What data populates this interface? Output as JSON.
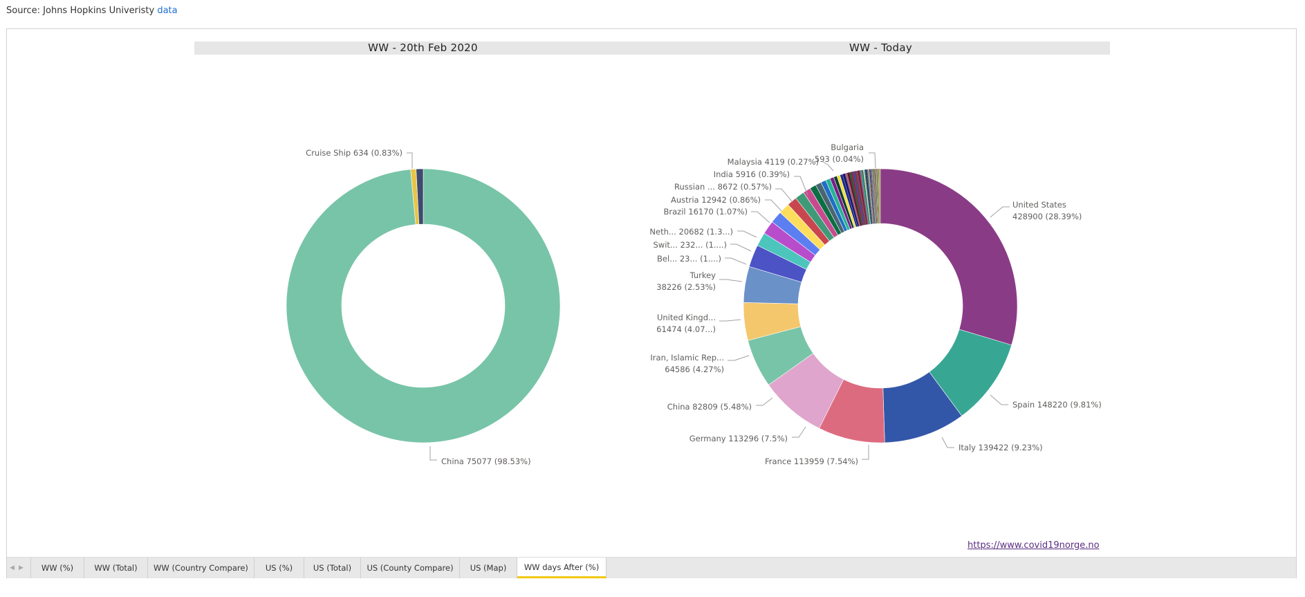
{
  "source": {
    "prefix": "Source: Johns Hopkins Univeristy",
    "link_label": "data"
  },
  "headers": {
    "left": "WW - 20th Feb 2020",
    "right": "WW - Today"
  },
  "footer_link": "https://www.covid19norge.no",
  "tabs": [
    {
      "label": "WW (%)",
      "active": false
    },
    {
      "label": "WW (Total)",
      "active": false
    },
    {
      "label": "WW (Country Compare)",
      "active": false
    },
    {
      "label": "US (%)",
      "active": false
    },
    {
      "label": "US (Total)",
      "active": false
    },
    {
      "label": "US (County Compare)",
      "active": false
    },
    {
      "label": "US (Map)",
      "active": false
    },
    {
      "label": "WW days After (%)",
      "active": true
    }
  ],
  "nav_arrows": {
    "prev": "◀",
    "next": "▶"
  },
  "chart_data": [
    {
      "type": "pie",
      "title": "WW - 20th Feb 2020",
      "donut": true,
      "slices": [
        {
          "label": "China",
          "value": 75077,
          "percent": "98.53%",
          "color": "#78c4a8",
          "text": "China 75077 (98.53%)"
        },
        {
          "label": "Other small",
          "value": 489,
          "percent": "",
          "color": "#e8c547",
          "text": ""
        },
        {
          "label": "Cruise Ship",
          "value": 634,
          "percent": "0.83%",
          "color": "#3e4a6e",
          "text": "Cruise Ship 634 (0.83%)"
        }
      ]
    },
    {
      "type": "pie",
      "title": "WW - Today",
      "donut": true,
      "slices": [
        {
          "label": "United States",
          "value": 428900,
          "percent": "28.39%",
          "color": "#8a3b86",
          "text": [
            "United States",
            "428900 (28.39%)"
          ]
        },
        {
          "label": "Spain",
          "value": 148220,
          "percent": "9.81%",
          "color": "#37a794",
          "text": [
            "Spain 148220 (9.81%)"
          ]
        },
        {
          "label": "Italy",
          "value": 139422,
          "percent": "9.23%",
          "color": "#3357a8",
          "text": [
            "Italy 139422 (9.23%)"
          ]
        },
        {
          "label": "France",
          "value": 113959,
          "percent": "7.54%",
          "color": "#dd6b7f",
          "text": [
            "France 113959 (7.54%)"
          ]
        },
        {
          "label": "Germany",
          "value": 113296,
          "percent": "7.5%",
          "color": "#dfa5cc",
          "text": [
            "Germany 113296 (7.5%)"
          ]
        },
        {
          "label": "China",
          "value": 82809,
          "percent": "5.48%",
          "color": "#78c4a8",
          "text": [
            "China 82809 (5.48%)"
          ]
        },
        {
          "label": "Iran, Islamic Rep...",
          "value": 64586,
          "percent": "4.27%",
          "color": "#f4c76c",
          "text": [
            "Iran, Islamic Rep...",
            "64586 (4.27%)"
          ]
        },
        {
          "label": "United Kingd...",
          "value": 61474,
          "percent": "4.07...",
          "color": "#6a91c8",
          "text": [
            "United Kingd...",
            "61474 (4.07...)"
          ]
        },
        {
          "label": "Turkey",
          "value": 38226,
          "percent": "2.53%",
          "color": "#4b53c5",
          "text": [
            "Turkey",
            "38226 (2.53%)"
          ]
        },
        {
          "label": "Bel...",
          "value": 23403,
          "percent": "1....",
          "color": "#4cc5bd",
          "text": [
            "Bel... 23... (1....)"
          ]
        },
        {
          "label": "Swit...",
          "value": 23280,
          "percent": "1....",
          "color": "#b84dcc",
          "text": [
            "Swit... 232... (1....)"
          ]
        },
        {
          "label": "Neth...",
          "value": 20682,
          "percent": "1.3...",
          "color": "#5b7ff0",
          "text": [
            "Neth... 20682 (1.3...)"
          ]
        },
        {
          "label": "Yellow slice",
          "value": 19000,
          "percent": "",
          "color": "#fddd5c",
          "text": []
        },
        {
          "label": "Red slice",
          "value": 16800,
          "percent": "",
          "color": "#c8474f",
          "text": []
        },
        {
          "label": "Brazil",
          "value": 16170,
          "percent": "1.07%",
          "color": "#3f9a78",
          "text": [
            "Brazil 16170 (1.07%)"
          ]
        },
        {
          "label": "Austria",
          "value": 12942,
          "percent": "0.86%",
          "color": "#c84a8e",
          "text": [
            "Austria 12942 (0.86%)"
          ]
        },
        {
          "label": "Green slice",
          "value": 11000,
          "percent": "",
          "color": "#0d6e44",
          "text": []
        },
        {
          "label": "Slate slice",
          "value": 10000,
          "percent": "",
          "color": "#4a6670",
          "text": []
        },
        {
          "label": "Russian ...",
          "value": 8672,
          "percent": "0.57%",
          "color": "#1f6fc4",
          "text": [
            "Russian ... 8672 (0.57%)"
          ]
        },
        {
          "label": "Teal slice",
          "value": 7800,
          "percent": "",
          "color": "#26b594",
          "text": []
        },
        {
          "label": "Purple slice",
          "value": 6600,
          "percent": "",
          "color": "#7a1f8a",
          "text": []
        },
        {
          "label": "India",
          "value": 5916,
          "percent": "0.39%",
          "color": "#0e3f2f",
          "text": [
            "India 5916 (0.39%)"
          ]
        },
        {
          "label": "Yellow2 slice",
          "value": 5200,
          "percent": "",
          "color": "#f5de3a",
          "text": []
        },
        {
          "label": "Navy slice",
          "value": 4800,
          "percent": "",
          "color": "#1b2a8a",
          "text": []
        },
        {
          "label": "Malaysia",
          "value": 4119,
          "percent": "0.27%",
          "color": "#14196e",
          "text": [
            "Malaysia 4119 (0.27%)"
          ]
        },
        {
          "label": "Mauve slice",
          "value": 3800,
          "percent": "",
          "color": "#a8687a",
          "text": []
        },
        {
          "label": "Dark red slice",
          "value": 3500,
          "percent": "",
          "color": "#6a1030",
          "text": []
        },
        {
          "label": "Dark green slice",
          "value": 3300,
          "percent": "",
          "color": "#1e5c3a",
          "text": []
        },
        {
          "label": "Crimson slice",
          "value": 3100,
          "percent": "",
          "color": "#a11c3a",
          "text": []
        },
        {
          "label": "Blue slice",
          "value": 2900,
          "percent": "",
          "color": "#2c4aa8",
          "text": []
        },
        {
          "label": "Brown slice",
          "value": 2800,
          "percent": "",
          "color": "#7a3430",
          "text": []
        },
        {
          "label": "Plum slice",
          "value": 2600,
          "percent": "",
          "color": "#8a3a6a",
          "text": []
        },
        {
          "label": "Maroon slice",
          "value": 2500,
          "percent": "",
          "color": "#5a1a2a",
          "text": []
        },
        {
          "label": "Rose slice",
          "value": 2400,
          "percent": "",
          "color": "#b6426a",
          "text": []
        },
        {
          "label": "Cyan slice",
          "value": 2200,
          "percent": "",
          "color": "#19a6b0",
          "text": []
        },
        {
          "label": "Olive slice",
          "value": 2100,
          "percent": "",
          "color": "#3d6a3a",
          "text": []
        },
        {
          "label": "Light slice",
          "value": 2000,
          "percent": "",
          "color": "#d8d8c0",
          "text": []
        },
        {
          "label": "Teal2 slice",
          "value": 1900,
          "percent": "",
          "color": "#2e7d8c",
          "text": []
        },
        {
          "label": "Black slice",
          "value": 1800,
          "percent": "",
          "color": "#222233",
          "text": []
        },
        {
          "label": "Grey slice",
          "value": 1700,
          "percent": "",
          "color": "#556070",
          "text": []
        },
        {
          "label": "Sky slice",
          "value": 1600,
          "percent": "",
          "color": "#5a8cc8",
          "text": []
        },
        {
          "label": "Orange slice",
          "value": 1500,
          "percent": "",
          "color": "#f0a45a",
          "text": []
        },
        {
          "label": "Ink slice",
          "value": 1400,
          "percent": "",
          "color": "#1a2040",
          "text": []
        },
        {
          "label": "Steel slice",
          "value": 1300,
          "percent": "",
          "color": "#6680a0",
          "text": []
        },
        {
          "label": "Indigo slice",
          "value": 1250,
          "percent": "",
          "color": "#3a3a8a",
          "text": []
        },
        {
          "label": "Sand slice",
          "value": 1200,
          "percent": "",
          "color": "#c8b070",
          "text": []
        },
        {
          "label": "Dusk slice",
          "value": 1150,
          "percent": "",
          "color": "#4a5a7a",
          "text": []
        },
        {
          "label": "Moss slice",
          "value": 1100,
          "percent": "",
          "color": "#7a8a4a",
          "text": []
        },
        {
          "label": "Stone slice",
          "value": 1050,
          "percent": "",
          "color": "#8a8a8a",
          "text": []
        },
        {
          "label": "Wine slice",
          "value": 1000,
          "percent": "",
          "color": "#7a2a5a",
          "text": []
        },
        {
          "label": "Lime slice",
          "value": 950,
          "percent": "",
          "color": "#a8c858",
          "text": []
        },
        {
          "label": "Charcoal slice",
          "value": 900,
          "percent": "",
          "color": "#333a44",
          "text": []
        },
        {
          "label": "Peach slice",
          "value": 850,
          "percent": "",
          "color": "#e0b080",
          "text": []
        },
        {
          "label": "Slate2 slice",
          "value": 800,
          "percent": "",
          "color": "#506878",
          "text": []
        },
        {
          "label": "Gold slice",
          "value": 750,
          "percent": "",
          "color": "#c8a030",
          "text": []
        },
        {
          "label": "Forest slice",
          "value": 700,
          "percent": "",
          "color": "#2a5a3a",
          "text": []
        },
        {
          "label": "Lilac slice",
          "value": 650,
          "percent": "",
          "color": "#9a80b8",
          "text": []
        },
        {
          "label": "Bulgaria",
          "value": 593,
          "percent": "0.04%",
          "color": "#8aa040",
          "text": [
            "Bulgaria",
            "593 (0.04%)"
          ]
        },
        {
          "label": "Tail slice",
          "value": 3000,
          "percent": "",
          "color": "#b0b070",
          "text": []
        }
      ]
    }
  ]
}
